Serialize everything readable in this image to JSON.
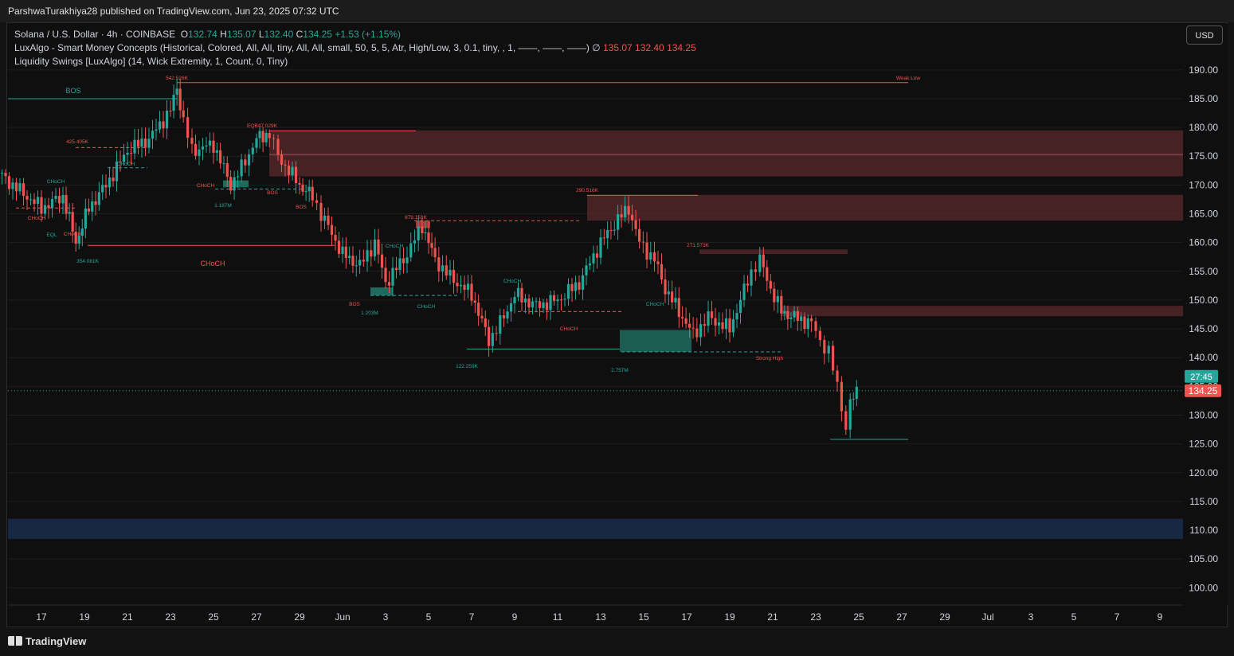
{
  "header": {
    "published": "ParshwaTurakhiya28 published on TradingView.com, Jun 23, 2025 07:32 UTC"
  },
  "legend": {
    "symbol": "Solana / U.S. Dollar · 4h · COINBASE",
    "o_label": "O",
    "o": "132.74",
    "h_label": "H",
    "h": "135.07",
    "l_label": "L",
    "l": "132.40",
    "c_label": "C",
    "c": "134.25",
    "change": "+1.53 (+1.15%)",
    "smc": "LuxAlgo - Smart Money Concepts (Historical, Colored, All, All, tiny, All, All, small, 50, 5, 5, Atr, High/Low, 3, 0.1, tiny, , 1, ——, ——, ——)  ∅",
    "smc_v1": "135.07",
    "smc_v2": "132.40",
    "smc_v3": "134.25",
    "liq": "Liquidity Swings [LuxAlgo] (14, Wick Extremity, 1, Count, 0, Tiny)"
  },
  "currency_button": "USD",
  "price_tags": {
    "countdown": "27:45",
    "last": "134.25"
  },
  "footer": {
    "brand": "TradingView"
  },
  "colors": {
    "up": "#26a69a",
    "down": "#ef5350",
    "demand_zone": "#1e6b5e",
    "supply_zone": "#5a2a2e",
    "blue_zone": "#1a2a4a"
  },
  "chart_data": {
    "type": "candlestick",
    "ylim": [
      97,
      198
    ],
    "y_ticks": [
      100,
      105,
      110,
      115,
      120,
      125,
      130,
      135,
      140,
      145,
      150,
      155,
      160,
      165,
      170,
      175,
      180,
      185,
      190
    ],
    "x_ticks": [
      "17",
      "19",
      "21",
      "23",
      "25",
      "27",
      "29",
      "Jun",
      "3",
      "5",
      "7",
      "9",
      "11",
      "13",
      "15",
      "17",
      "19",
      "21",
      "23",
      "25",
      "27",
      "29",
      "Jul",
      "3",
      "5",
      "7",
      "9"
    ],
    "swing_path": [
      [
        15,
        172
      ],
      [
        16,
        169
      ],
      [
        17,
        166
      ],
      [
        18,
        168
      ],
      [
        18.6,
        160
      ],
      [
        19.2,
        166
      ],
      [
        20,
        170
      ],
      [
        21,
        176
      ],
      [
        22,
        178
      ],
      [
        23,
        183
      ],
      [
        23.3,
        187
      ],
      [
        23.6,
        181
      ],
      [
        24,
        176
      ],
      [
        25,
        177
      ],
      [
        25.8,
        170
      ],
      [
        26.3,
        173
      ],
      [
        27,
        178
      ],
      [
        27.6,
        179
      ],
      [
        28,
        175
      ],
      [
        29,
        170
      ],
      [
        29.6,
        168
      ],
      [
        30,
        165
      ],
      [
        31,
        158
      ],
      [
        31.8,
        156
      ],
      [
        32.5,
        160
      ],
      [
        33,
        153
      ],
      [
        34,
        158
      ],
      [
        34.7,
        163
      ],
      [
        35.3,
        157
      ],
      [
        36,
        154
      ],
      [
        37,
        151
      ],
      [
        37.8,
        143
      ],
      [
        38.5,
        147
      ],
      [
        39,
        151
      ],
      [
        40,
        149
      ],
      [
        41,
        150
      ],
      [
        42,
        153
      ],
      [
        43,
        160
      ],
      [
        43.8,
        164
      ],
      [
        44.3,
        166
      ],
      [
        44.8,
        160
      ],
      [
        45.5,
        157
      ],
      [
        46,
        152
      ],
      [
        46.8,
        147
      ],
      [
        47.3,
        144
      ],
      [
        48,
        147
      ],
      [
        49,
        145
      ],
      [
        50,
        155
      ],
      [
        50.4,
        157
      ],
      [
        50.9,
        152
      ],
      [
        51.4,
        148
      ],
      [
        52,
        147
      ],
      [
        52.8,
        146
      ],
      [
        53.2,
        143
      ],
      [
        53.6,
        141
      ],
      [
        54,
        135
      ],
      [
        54.4,
        128
      ],
      [
        54.6,
        132
      ],
      [
        54.9,
        134
      ]
    ],
    "volumes": [
      "425.405K",
      "354.081K",
      "542.526K",
      "EQB47.029K",
      "1.187M",
      "879.151K",
      "1.203M",
      "122.259K",
      "290.516K",
      "2.757M",
      "271.573K"
    ],
    "annotations": [
      "BOS",
      "CHoCH",
      "EQL",
      "BOS",
      "BOS",
      "CHoCH",
      "BOS",
      "CHoCH",
      "CHoCH",
      "CHoCH",
      "CHoCH",
      "CHoCH",
      "CHoCH",
      "CHoCH",
      "CHoCH",
      "CHoCH",
      "Strong High",
      "Weak Low"
    ],
    "supply_zones": [
      [
        171.5,
        179.5
      ],
      [
        163.8,
        168.3
      ],
      [
        158,
        158.8
      ],
      [
        147.2,
        149
      ]
    ],
    "demand_zones": [
      [
        141,
        144.8
      ]
    ],
    "highlight_zone": [
      108.5,
      112
    ],
    "strong_high": 187.8,
    "weak_low": 125.8,
    "last_price": 134.25
  }
}
